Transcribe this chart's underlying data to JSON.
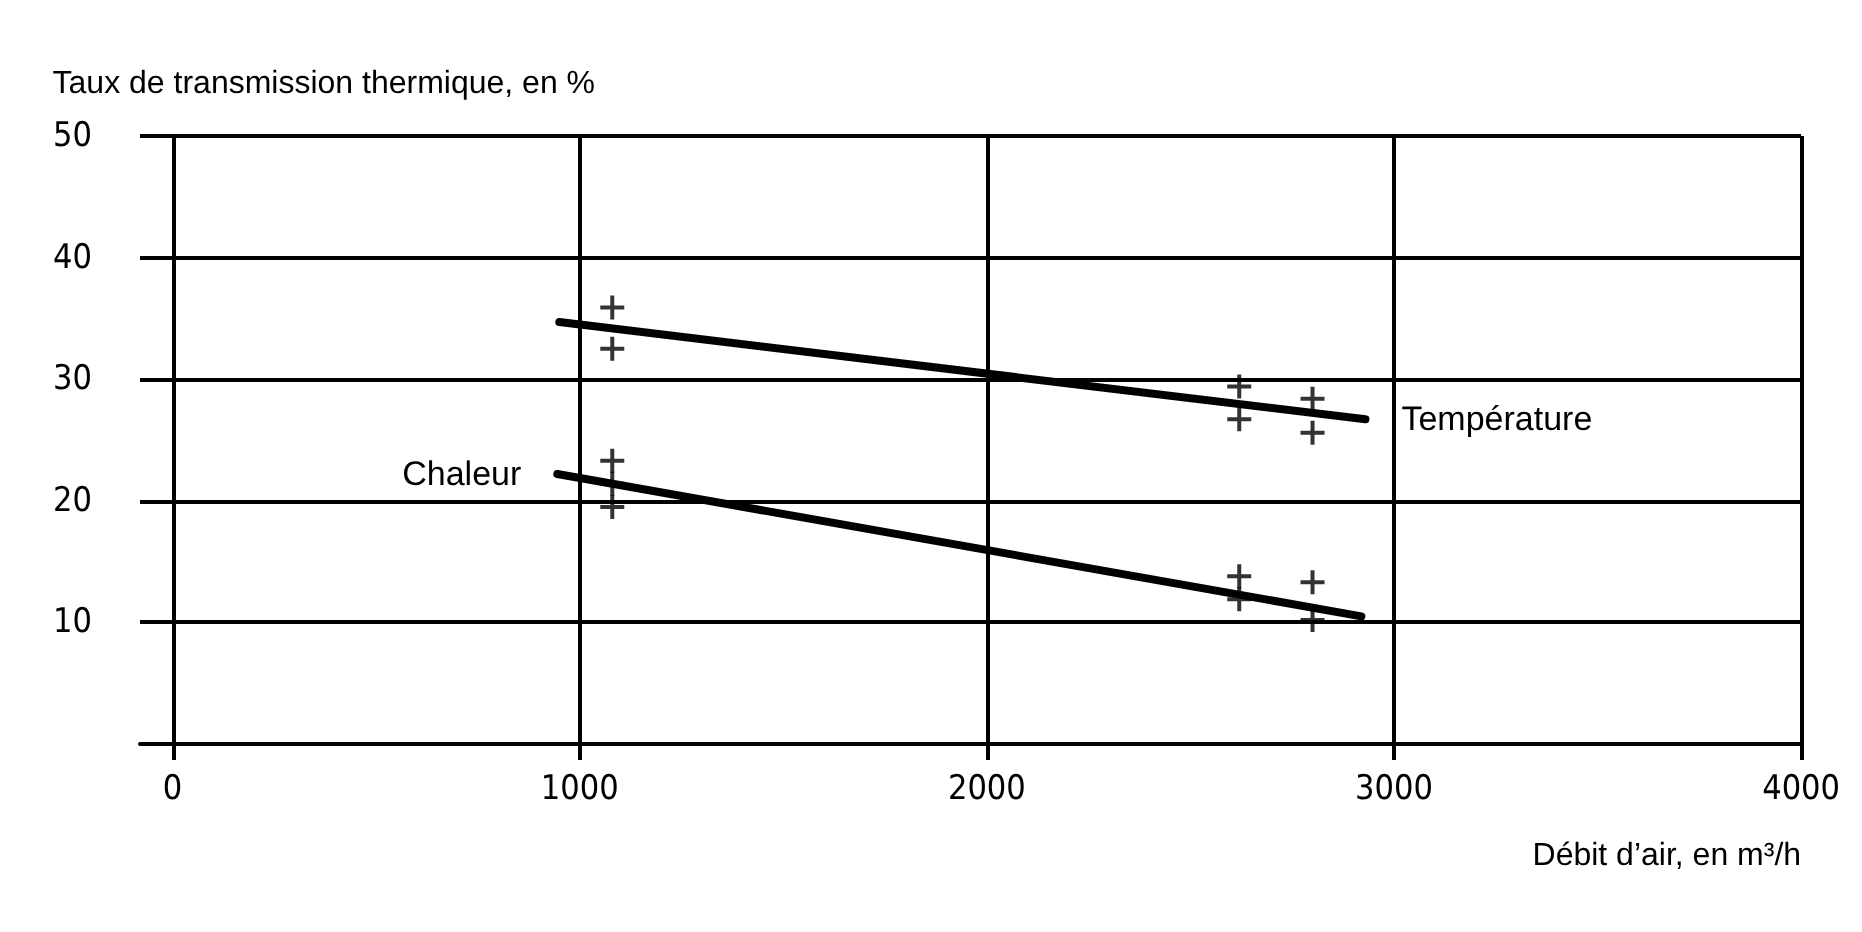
{
  "chart_data": {
    "type": "line",
    "xlabel": "Débit d’air, en m³/h",
    "ylabel": "Taux de transmission thermique, en %",
    "xlim": [
      -80,
      4000
    ],
    "xticks": [
      0,
      1000,
      2000,
      3000,
      4000
    ],
    "ylim": [
      0,
      50
    ],
    "yticks": [
      {
        "value": 0,
        "label": null
      },
      10,
      20,
      30,
      40,
      50
    ],
    "grid": true,
    "marker": "none",
    "line_style": "solid",
    "series": [
      {
        "name": "Température",
        "color": "#000000",
        "x": [
          950,
          2930
        ],
        "values": [
          34.7,
          26.7
        ]
      },
      {
        "name": "Chaleur",
        "color": "#000000",
        "x": [
          945,
          2920
        ],
        "values": [
          22.2,
          10.5
        ]
      },
      {
        "type": "scatter",
        "marker": "cross",
        "color": "#000000",
        "x": [
          1080,
          1080,
          2620,
          2620,
          2800,
          2800
        ],
        "values": [
          35.9,
          32.5,
          29.4,
          26.7,
          28.4,
          25.6
        ]
      },
      {
        "type": "scatter",
        "marker": "cross",
        "color": "#000000",
        "x": [
          1080,
          1080,
          1080,
          2620,
          2620,
          2800,
          2800
        ],
        "values": [
          23.3,
          21.4,
          19.5,
          13.8,
          11.9,
          13.3,
          10.2
        ]
      }
    ]
  }
}
